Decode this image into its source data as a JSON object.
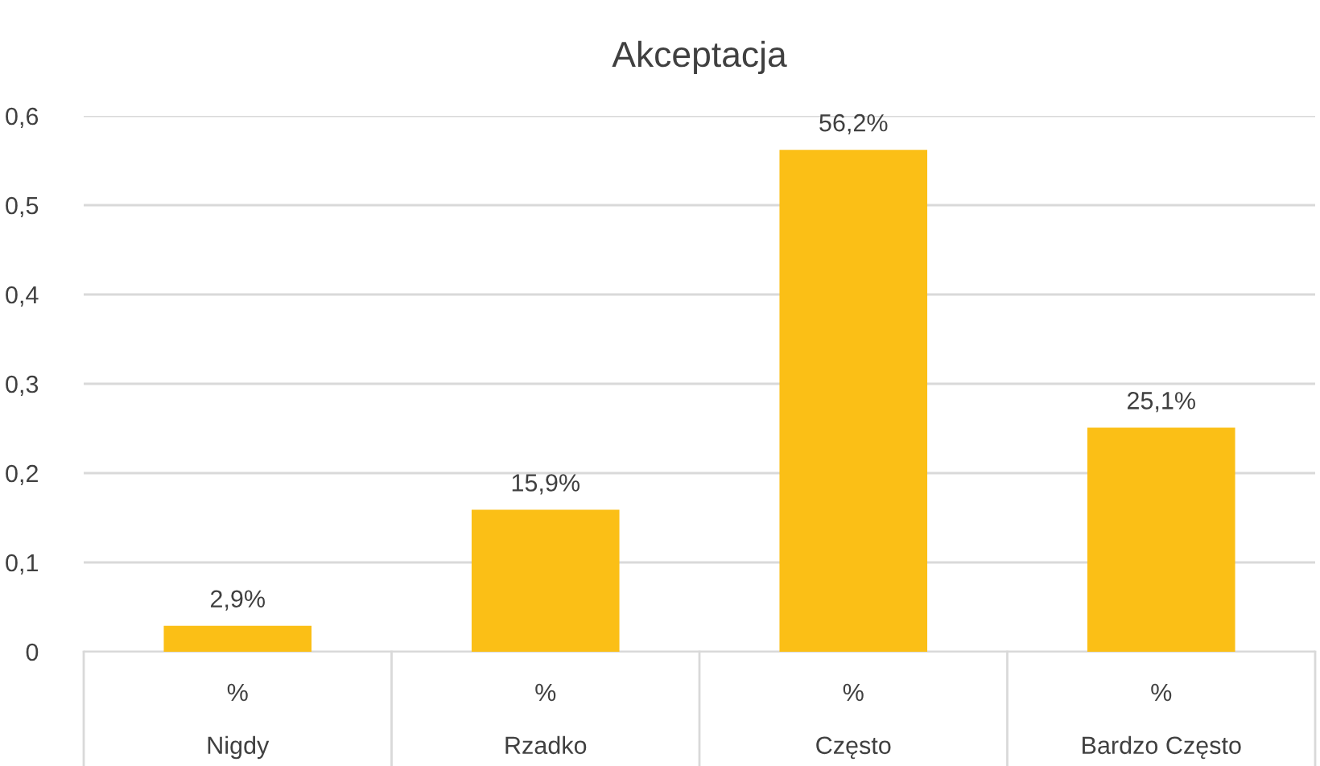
{
  "chart_data": {
    "type": "bar",
    "title": "Akceptacja",
    "categories": [
      "%\n\nNigdy",
      "%\n\nRzadko",
      "%\n\nCzęsto",
      "%\n\nBardzo Często"
    ],
    "values": [
      0.029,
      0.159,
      0.562,
      0.251
    ],
    "value_labels": [
      "2,9%",
      "15,9%",
      "56,2%",
      "25,1%"
    ],
    "color": "#fbbf16",
    "ylim": [
      0,
      0.6
    ],
    "yticks": [
      {
        "value": 0,
        "label": "0"
      },
      {
        "value": 0.1,
        "label": "0,1"
      },
      {
        "value": 0.2,
        "label": "0,2"
      },
      {
        "value": 0.3,
        "label": "0,3"
      },
      {
        "value": 0.4,
        "label": "0,4"
      },
      {
        "value": 0.5,
        "label": "0,5"
      },
      {
        "value": 0.6,
        "label": "0,6"
      }
    ],
    "grid": "y"
  }
}
